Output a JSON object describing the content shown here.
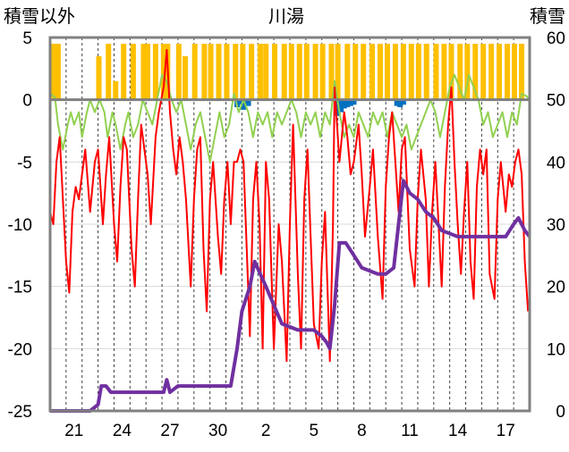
{
  "chart_data": {
    "type": "line",
    "title": "川湯",
    "left_axis_label": "積雪以外",
    "right_axis_label": "積雪",
    "left_ylim": [
      -25,
      5
    ],
    "right_ylim": [
      0,
      60
    ],
    "left_ticks": [
      "5",
      "0",
      "-5",
      "-10",
      "-15",
      "-20",
      "-25"
    ],
    "right_ticks": [
      "60",
      "50",
      "40",
      "30",
      "20",
      "10",
      "0"
    ],
    "x_tick_labels": [
      "21",
      "24",
      "27",
      "30",
      "2",
      "5",
      "8",
      "11",
      "14",
      "17"
    ],
    "grid": true,
    "colors": {
      "temperature": "#ff0000",
      "feels_like": "#92d050",
      "sunshine": "#ffc000",
      "precipitation": "#0070c0",
      "snow_depth": "#7030a0"
    },
    "days_start_day": 19.5,
    "days_end_day": 49.5,
    "snow_depth": [
      [
        19.5,
        0
      ],
      [
        22.0,
        0
      ],
      [
        22.5,
        1
      ],
      [
        22.7,
        4
      ],
      [
        23.0,
        4
      ],
      [
        23.3,
        3
      ],
      [
        25.5,
        3
      ],
      [
        26.6,
        3
      ],
      [
        26.8,
        5
      ],
      [
        27.0,
        3
      ],
      [
        27.5,
        4
      ],
      [
        29.0,
        4
      ],
      [
        30.8,
        4
      ],
      [
        31.2,
        10
      ],
      [
        31.5,
        16
      ],
      [
        32.0,
        20
      ],
      [
        32.3,
        24
      ],
      [
        33.0,
        20
      ],
      [
        33.5,
        17
      ],
      [
        34.0,
        14
      ],
      [
        35.0,
        13
      ],
      [
        36.0,
        13
      ],
      [
        36.5,
        12
      ],
      [
        36.8,
        11
      ],
      [
        37.0,
        10
      ],
      [
        37.3,
        17
      ],
      [
        37.6,
        27
      ],
      [
        38.0,
        27
      ],
      [
        38.5,
        25
      ],
      [
        39.0,
        23
      ],
      [
        40.0,
        22
      ],
      [
        40.5,
        22
      ],
      [
        41.0,
        23
      ],
      [
        41.3,
        30
      ],
      [
        41.6,
        37
      ],
      [
        42.0,
        35
      ],
      [
        42.5,
        34
      ],
      [
        43.0,
        32
      ],
      [
        43.5,
        31
      ],
      [
        44.0,
        29
      ],
      [
        45.0,
        28
      ],
      [
        46.0,
        28
      ],
      [
        47.0,
        28
      ],
      [
        48.0,
        28
      ],
      [
        48.5,
        30
      ],
      [
        48.8,
        31
      ],
      [
        49.2,
        29
      ],
      [
        49.5,
        28
      ]
    ],
    "temperature": [
      [
        19.5,
        -9
      ],
      [
        19.7,
        -10
      ],
      [
        19.9,
        -5
      ],
      [
        20.1,
        -3
      ],
      [
        20.3,
        -8
      ],
      [
        20.5,
        -13
      ],
      [
        20.7,
        -15.5
      ],
      [
        20.9,
        -9
      ],
      [
        21.1,
        -7
      ],
      [
        21.3,
        -8
      ],
      [
        21.5,
        -6
      ],
      [
        21.7,
        -4
      ],
      [
        22.0,
        -9
      ],
      [
        22.3,
        -5
      ],
      [
        22.5,
        -4
      ],
      [
        22.8,
        -10
      ],
      [
        23.0,
        -6
      ],
      [
        23.2,
        -3
      ],
      [
        23.5,
        -10
      ],
      [
        23.7,
        -13
      ],
      [
        23.9,
        -7
      ],
      [
        24.1,
        -3
      ],
      [
        24.3,
        -4
      ],
      [
        24.6,
        -12
      ],
      [
        24.8,
        -15
      ],
      [
        25.0,
        -8
      ],
      [
        25.2,
        -2
      ],
      [
        25.4,
        -4
      ],
      [
        25.6,
        -6
      ],
      [
        25.8,
        -10
      ],
      [
        26.1,
        -3
      ],
      [
        26.3,
        -1
      ],
      [
        26.6,
        1
      ],
      [
        26.8,
        4
      ],
      [
        27.0,
        -1
      ],
      [
        27.2,
        -4
      ],
      [
        27.4,
        -6
      ],
      [
        27.6,
        -3
      ],
      [
        27.8,
        -5
      ],
      [
        28.0,
        -8
      ],
      [
        28.3,
        -15
      ],
      [
        28.5,
        -8
      ],
      [
        28.7,
        -4
      ],
      [
        28.9,
        -3
      ],
      [
        29.1,
        -12
      ],
      [
        29.3,
        -17
      ],
      [
        29.5,
        -8
      ],
      [
        29.7,
        -5
      ],
      [
        30.0,
        -11
      ],
      [
        30.2,
        -14
      ],
      [
        30.4,
        -8
      ],
      [
        30.6,
        -5
      ],
      [
        30.8,
        -10
      ],
      [
        31.0,
        -5
      ],
      [
        31.2,
        -5
      ],
      [
        31.4,
        -4
      ],
      [
        31.6,
        -5
      ],
      [
        31.8,
        -12
      ],
      [
        32.0,
        -19
      ],
      [
        32.2,
        -8
      ],
      [
        32.4,
        -5
      ],
      [
        32.6,
        -10
      ],
      [
        32.8,
        -20
      ],
      [
        33.0,
        -5
      ],
      [
        33.2,
        -8
      ],
      [
        33.5,
        -20
      ],
      [
        33.8,
        -10
      ],
      [
        34.0,
        -13
      ],
      [
        34.3,
        -21
      ],
      [
        34.5,
        -10
      ],
      [
        34.7,
        -2
      ],
      [
        35.0,
        -14
      ],
      [
        35.2,
        -20
      ],
      [
        35.4,
        -8
      ],
      [
        35.6,
        -4
      ],
      [
        35.8,
        -11
      ],
      [
        36.0,
        -18
      ],
      [
        36.3,
        -20
      ],
      [
        36.5,
        -13
      ],
      [
        36.7,
        -9
      ],
      [
        37.0,
        -21
      ],
      [
        37.2,
        -10
      ],
      [
        37.3,
        1
      ],
      [
        37.6,
        -5
      ],
      [
        37.9,
        -1
      ],
      [
        38.1,
        -3
      ],
      [
        38.3,
        -6
      ],
      [
        38.5,
        -5
      ],
      [
        38.8,
        -2
      ],
      [
        39.0,
        -6
      ],
      [
        39.2,
        -11
      ],
      [
        39.5,
        -7
      ],
      [
        39.7,
        -4
      ],
      [
        40.0,
        -11
      ],
      [
        40.3,
        -16
      ],
      [
        40.5,
        -7
      ],
      [
        40.7,
        -3
      ],
      [
        40.9,
        -1
      ],
      [
        41.1,
        -5
      ],
      [
        41.3,
        -9
      ],
      [
        41.5,
        -4
      ],
      [
        41.7,
        -3
      ],
      [
        42.0,
        -12
      ],
      [
        42.3,
        -15
      ],
      [
        42.5,
        -8
      ],
      [
        42.7,
        -4
      ],
      [
        43.0,
        -8
      ],
      [
        43.2,
        -15
      ],
      [
        43.4,
        -9
      ],
      [
        43.6,
        -5
      ],
      [
        43.8,
        -10
      ],
      [
        44.0,
        -15
      ],
      [
        44.2,
        -7
      ],
      [
        44.4,
        -2
      ],
      [
        44.6,
        1
      ],
      [
        44.8,
        -5
      ],
      [
        45.0,
        -10
      ],
      [
        45.2,
        -14
      ],
      [
        45.4,
        -9
      ],
      [
        45.6,
        -5
      ],
      [
        45.8,
        -13
      ],
      [
        46.0,
        -16
      ],
      [
        46.2,
        -7
      ],
      [
        46.4,
        -4
      ],
      [
        46.6,
        -6
      ],
      [
        46.8,
        -4
      ],
      [
        47.0,
        -14
      ],
      [
        47.3,
        -16
      ],
      [
        47.5,
        -8
      ],
      [
        47.7,
        -5
      ],
      [
        48.0,
        -9
      ],
      [
        48.2,
        -6
      ],
      [
        48.4,
        -7
      ],
      [
        48.6,
        -5
      ],
      [
        48.8,
        -4
      ],
      [
        49.0,
        -6
      ],
      [
        49.2,
        -13
      ],
      [
        49.4,
        -17
      ]
    ],
    "feels_like": [
      [
        19.5,
        0.5
      ],
      [
        19.8,
        0.2
      ],
      [
        20.0,
        -2
      ],
      [
        20.3,
        -4
      ],
      [
        20.6,
        -2
      ],
      [
        20.8,
        -1
      ],
      [
        21.0,
        -2
      ],
      [
        21.3,
        -1
      ],
      [
        21.5,
        -3
      ],
      [
        21.8,
        -1
      ],
      [
        22.0,
        0
      ],
      [
        22.3,
        -1
      ],
      [
        22.6,
        0
      ],
      [
        22.9,
        -1
      ],
      [
        23.1,
        -3
      ],
      [
        23.4,
        -1
      ],
      [
        23.6,
        -2
      ],
      [
        23.9,
        -4
      ],
      [
        24.2,
        -2
      ],
      [
        24.4,
        -1
      ],
      [
        24.7,
        -3
      ],
      [
        25.0,
        -2
      ],
      [
        25.3,
        0
      ],
      [
        25.6,
        -1
      ],
      [
        25.9,
        -2
      ],
      [
        26.2,
        0
      ],
      [
        26.5,
        2
      ],
      [
        26.8,
        1.5
      ],
      [
        27.1,
        0
      ],
      [
        27.4,
        -1
      ],
      [
        27.7,
        0
      ],
      [
        28.0,
        -2
      ],
      [
        28.3,
        -4
      ],
      [
        28.6,
        -2
      ],
      [
        28.9,
        -1
      ],
      [
        29.2,
        -3
      ],
      [
        29.5,
        -5
      ],
      [
        29.8,
        -3
      ],
      [
        30.1,
        -1
      ],
      [
        30.4,
        -3
      ],
      [
        30.7,
        -2
      ],
      [
        31.0,
        0.5
      ],
      [
        31.3,
        -1
      ],
      [
        31.6,
        0
      ],
      [
        31.9,
        -1
      ],
      [
        32.2,
        -3
      ],
      [
        32.5,
        -1
      ],
      [
        32.8,
        -2
      ],
      [
        33.1,
        -1
      ],
      [
        33.4,
        -3
      ],
      [
        33.7,
        -1
      ],
      [
        34.0,
        -2
      ],
      [
        34.3,
        -1
      ],
      [
        34.6,
        0
      ],
      [
        34.9,
        -1
      ],
      [
        35.2,
        -3
      ],
      [
        35.5,
        -1
      ],
      [
        35.8,
        -2
      ],
      [
        36.1,
        -1
      ],
      [
        36.4,
        -3
      ],
      [
        36.7,
        -1
      ],
      [
        37.0,
        -2
      ],
      [
        37.3,
        1.5
      ],
      [
        37.6,
        -1
      ],
      [
        37.9,
        -3
      ],
      [
        38.2,
        -2
      ],
      [
        38.5,
        -3
      ],
      [
        38.8,
        -1
      ],
      [
        39.1,
        -2
      ],
      [
        39.4,
        -3
      ],
      [
        39.7,
        -1
      ],
      [
        40.0,
        -2
      ],
      [
        40.3,
        -1
      ],
      [
        40.6,
        -3
      ],
      [
        40.9,
        -1
      ],
      [
        41.2,
        -2
      ],
      [
        41.5,
        -3
      ],
      [
        41.8,
        -2
      ],
      [
        42.1,
        -4
      ],
      [
        42.4,
        -3
      ],
      [
        42.7,
        -2
      ],
      [
        43.0,
        -1
      ],
      [
        43.3,
        0
      ],
      [
        43.6,
        -1
      ],
      [
        43.9,
        -3
      ],
      [
        44.2,
        -1
      ],
      [
        44.5,
        1
      ],
      [
        44.8,
        2
      ],
      [
        45.1,
        1
      ],
      [
        45.4,
        0
      ],
      [
        45.7,
        2
      ],
      [
        46.0,
        1
      ],
      [
        46.3,
        0
      ],
      [
        46.6,
        -2
      ],
      [
        46.9,
        -1
      ],
      [
        47.2,
        -3
      ],
      [
        47.5,
        -2
      ],
      [
        47.8,
        -1
      ],
      [
        48.1,
        -3
      ],
      [
        48.4,
        -1
      ],
      [
        48.7,
        -2
      ],
      [
        49.0,
        0.5
      ],
      [
        49.3,
        0.3
      ],
      [
        49.5,
        0
      ]
    ],
    "sunshine_bars": [
      [
        19.75,
        4.5
      ],
      [
        20.0,
        4.5
      ],
      [
        22.55,
        3.5
      ],
      [
        23.15,
        4.5
      ],
      [
        23.6,
        1.5
      ],
      [
        24.1,
        4.5
      ],
      [
        24.7,
        4.5
      ],
      [
        25.35,
        4.5
      ],
      [
        25.6,
        4.5
      ],
      [
        26.1,
        4.5
      ],
      [
        26.6,
        4.5
      ],
      [
        26.85,
        4.5
      ],
      [
        27.55,
        4.5
      ],
      [
        27.95,
        3.5
      ],
      [
        28.55,
        4.5
      ],
      [
        29.15,
        4.5
      ],
      [
        29.55,
        4.5
      ],
      [
        30.05,
        4.5
      ],
      [
        30.55,
        4.5
      ],
      [
        31.1,
        4.5
      ],
      [
        31.55,
        4.5
      ],
      [
        32.1,
        4.5
      ],
      [
        32.65,
        4.5
      ],
      [
        33.0,
        4.5
      ],
      [
        33.55,
        4.5
      ],
      [
        34.15,
        4.5
      ],
      [
        34.6,
        4.5
      ],
      [
        35.1,
        4.5
      ],
      [
        35.55,
        4.5
      ],
      [
        36.1,
        4.5
      ],
      [
        36.55,
        4.5
      ],
      [
        37.1,
        4.5
      ],
      [
        37.5,
        4.5
      ],
      [
        38.1,
        4.5
      ],
      [
        38.6,
        4.5
      ],
      [
        39.1,
        4.5
      ],
      [
        39.65,
        4.5
      ],
      [
        40.15,
        4.5
      ],
      [
        40.6,
        4.5
      ],
      [
        41.1,
        4.5
      ],
      [
        41.6,
        4.5
      ],
      [
        42.1,
        4.5
      ],
      [
        42.55,
        4.5
      ],
      [
        43.05,
        4.5
      ],
      [
        43.65,
        4.5
      ],
      [
        44.15,
        4.5
      ],
      [
        44.6,
        4.5
      ],
      [
        45.15,
        4.5
      ],
      [
        45.6,
        4.5
      ],
      [
        46.1,
        4.5
      ],
      [
        46.6,
        4.5
      ],
      [
        47.1,
        4.5
      ],
      [
        47.6,
        4.5
      ],
      [
        48.1,
        4.5
      ],
      [
        48.55,
        4.5
      ],
      [
        49.0,
        4.5
      ]
    ],
    "precip_bars": [
      [
        31.2,
        -0.6
      ],
      [
        31.4,
        -0.4
      ],
      [
        31.6,
        -0.8
      ],
      [
        31.9,
        -0.5
      ],
      [
        37.5,
        -1.3
      ],
      [
        37.7,
        -1.0
      ],
      [
        37.9,
        -0.7
      ],
      [
        38.1,
        -0.6
      ],
      [
        38.3,
        -0.5
      ],
      [
        38.5,
        -0.4
      ],
      [
        41.2,
        -0.5
      ],
      [
        41.4,
        -0.6
      ],
      [
        41.6,
        -0.4
      ]
    ]
  }
}
